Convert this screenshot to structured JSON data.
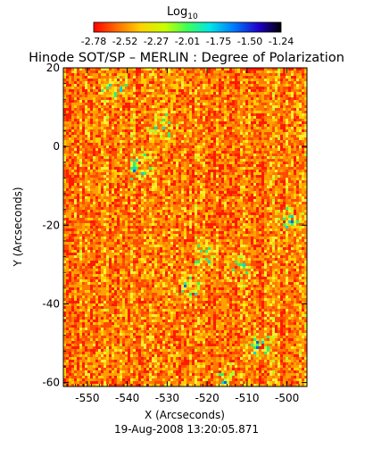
{
  "colorbar": {
    "label": "Log",
    "label_subscript": "10",
    "ticks": [
      "-2.78",
      "-2.52",
      "-2.27",
      "-2.01",
      "-1.75",
      "-1.50",
      "-1.24"
    ],
    "colors": [
      "#ff0000",
      "#ff6a00",
      "#ffd200",
      "#c8ff00",
      "#3cff5a",
      "#00e6e6",
      "#0078ff",
      "#1e00c8",
      "#000000"
    ]
  },
  "chart_data": {
    "type": "heatmap",
    "title": "Hinode SOT/SP – MERLIN : Degree of Polarization",
    "xlabel": "X (Arcseconds)",
    "ylabel": "Y (Arcseconds)",
    "xlim": [
      -556,
      -495
    ],
    "ylim": [
      -61,
      20
    ],
    "xticks": [
      "-550",
      "-540",
      "-530",
      "-520",
      "-510",
      "-500"
    ],
    "yticks": [
      "20",
      "0",
      "-20",
      "-40",
      "-60"
    ],
    "value_range": [
      -2.78,
      -1.24
    ],
    "value_scale": "log10",
    "dominant_level": -2.7,
    "grid": false,
    "timestamp": "19-Aug-2008 13:20:05.871"
  }
}
